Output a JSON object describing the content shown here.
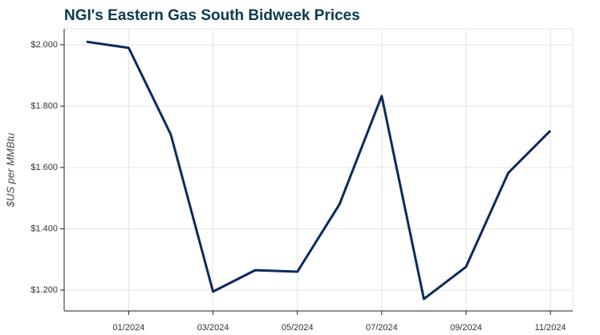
{
  "chart_data": {
    "type": "line",
    "title": "NGI's Eastern Gas South Bidweek Prices",
    "y_label": "$US per MMBtu",
    "x": [
      "2023-12",
      "2024-01",
      "2024-02",
      "2024-03",
      "2024-04",
      "2024-05",
      "2024-06",
      "2024-07",
      "2024-08",
      "2024-09",
      "2024-10",
      "2024-11"
    ],
    "series": [
      {
        "name": "Eastern Gas South",
        "color": "#0b2a5e",
        "values": [
          2.01,
          1.99,
          1.707,
          1.195,
          1.265,
          1.26,
          1.48,
          1.833,
          1.171,
          1.276,
          1.582,
          1.72
        ]
      }
    ],
    "ylim": [
      1.132,
      2.052
    ],
    "yticks": [
      {
        "value": 1.2,
        "label": "$1.200"
      },
      {
        "value": 1.4,
        "label": "$1.400"
      },
      {
        "value": 1.6,
        "label": "$1.600"
      },
      {
        "value": 1.8,
        "label": "$1.800"
      },
      {
        "value": 2.0,
        "label": "$2.000"
      }
    ],
    "xticks": [
      {
        "value": "2024-01",
        "label": "01/2024"
      },
      {
        "value": "2024-03",
        "label": "03/2024"
      },
      {
        "value": "2024-05",
        "label": "05/2024"
      },
      {
        "value": "2024-07",
        "label": "07/2024"
      },
      {
        "value": "2024-09",
        "label": "09/2024"
      },
      {
        "value": "2024-11",
        "label": "11/2024"
      }
    ],
    "grid": true
  }
}
